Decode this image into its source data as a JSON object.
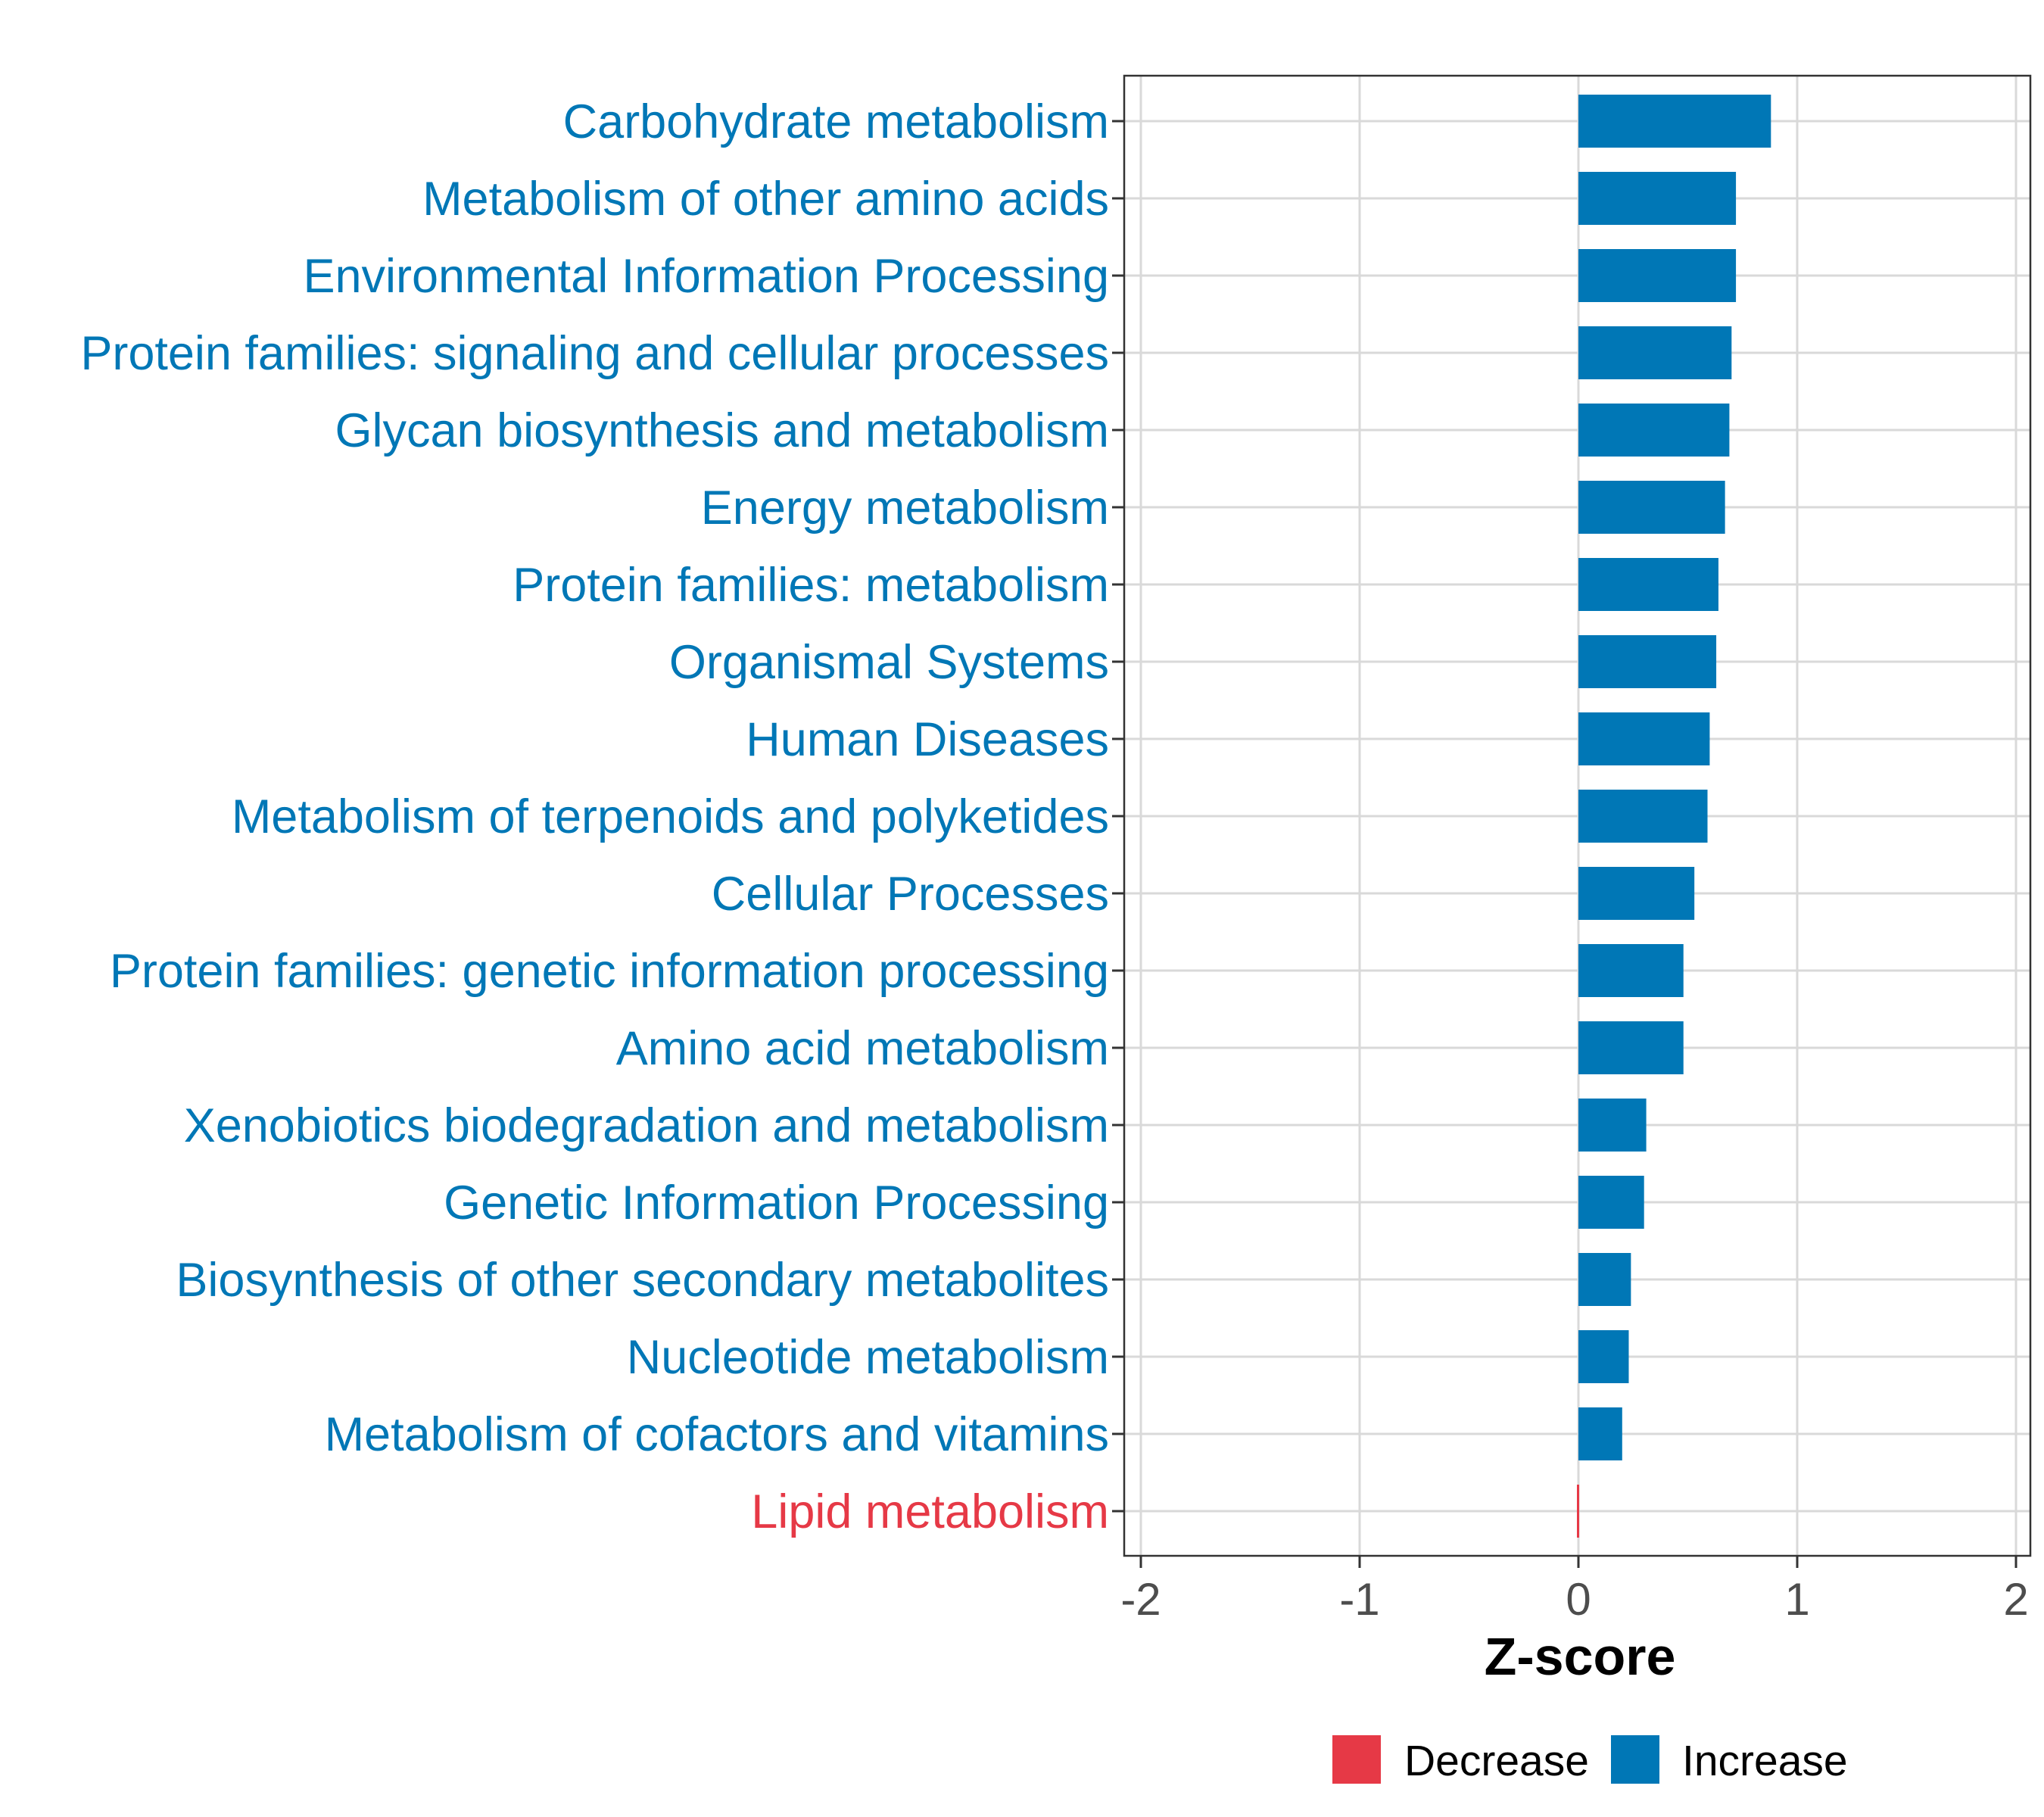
{
  "chart_data": {
    "type": "bar",
    "orientation": "horizontal",
    "title": "",
    "xlabel": "Z-score",
    "ylabel": "",
    "xlim": [
      -2,
      2
    ],
    "xticks": [
      -2,
      -1,
      0,
      1,
      2
    ],
    "xtick_labels": [
      "-2",
      "-1",
      "0",
      "1",
      "2"
    ],
    "grid": true,
    "legend_position": "bottom",
    "categories": [
      "Carbohydrate metabolism",
      "Metabolism of other amino acids",
      "Environmental Information Processing",
      "Protein families: signaling and cellular processes",
      "Glycan biosynthesis and metabolism",
      "Energy metabolism",
      "Protein families: metabolism",
      "Organismal Systems",
      "Human Diseases",
      "Metabolism of terpenoids and polyketides",
      "Cellular Processes",
      "Protein families: genetic information processing",
      "Amino acid metabolism",
      "Xenobiotics biodegradation and metabolism",
      "Genetic Information Processing",
      "Biosynthesis of other secondary metabolites",
      "Nucleotide metabolism",
      "Metabolism of cofactors and vitamins",
      "Lipid metabolism"
    ],
    "values": [
      0.88,
      0.72,
      0.72,
      0.7,
      0.69,
      0.67,
      0.64,
      0.63,
      0.6,
      0.59,
      0.53,
      0.48,
      0.48,
      0.31,
      0.3,
      0.24,
      0.23,
      0.2,
      -0.005
    ],
    "groups": [
      "Increase",
      "Increase",
      "Increase",
      "Increase",
      "Increase",
      "Increase",
      "Increase",
      "Increase",
      "Increase",
      "Increase",
      "Increase",
      "Increase",
      "Increase",
      "Increase",
      "Increase",
      "Increase",
      "Increase",
      "Increase",
      "Decrease"
    ],
    "legend": [
      {
        "name": "Decrease",
        "color": "#e63946"
      },
      {
        "name": "Increase",
        "color": "#0077b6"
      }
    ],
    "colors": {
      "Decrease": "#e63946",
      "Increase": "#0077b6"
    }
  }
}
